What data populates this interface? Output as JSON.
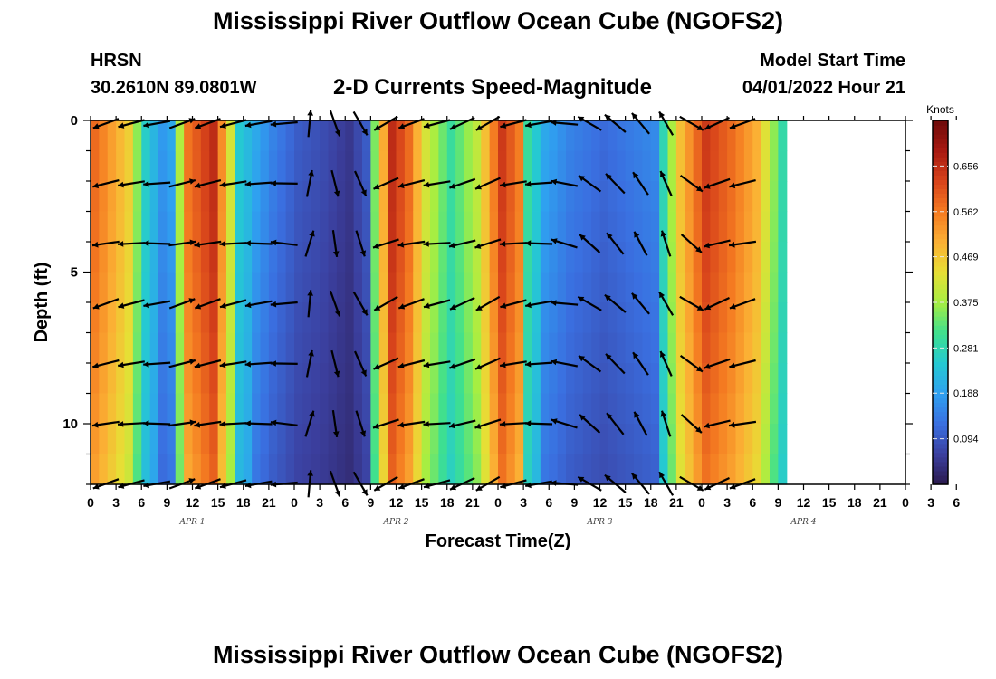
{
  "header": {
    "title": "Mississippi River Outflow Ocean Cube (NGOFS2)",
    "station": "HRSN",
    "coords": "30.2610N  89.0801W",
    "subtitle": "2-D Currents Speed-Magnitude",
    "start_label": "Model Start Time",
    "start_value": "04/01/2022 Hour 21"
  },
  "footer": {
    "title": "Mississippi River Outflow Ocean Cube (NGOFS2)"
  },
  "chart_data": {
    "type": "heatmap",
    "xlabel": "Forecast Time(Z)",
    "ylabel": "Depth (ft)",
    "ylim": [
      0,
      12
    ],
    "y_ticks": [
      0,
      5,
      10
    ],
    "x_tick_labels": [
      "0",
      "3",
      "6",
      "9",
      "12",
      "15",
      "18",
      "21",
      "0",
      "3",
      "6",
      "9",
      "12",
      "15",
      "18",
      "21",
      "0",
      "3",
      "6",
      "9",
      "12",
      "15",
      "18",
      "21",
      "0",
      "3",
      "6",
      "9",
      "12",
      "15",
      "18",
      "21",
      "0",
      "3",
      "6"
    ],
    "date_labels": [
      {
        "label": "APR 1",
        "hour": 12
      },
      {
        "label": "APR 2",
        "hour": 36
      },
      {
        "label": "APR 3",
        "hour": 60
      },
      {
        "label": "APR 4",
        "hour": 84
      }
    ],
    "x_hours_range": [
      0,
      96
    ],
    "colorbar": {
      "title": "Knots",
      "range": [
        0,
        0.75
      ],
      "ticks": [
        0.094,
        0.188,
        0.281,
        0.375,
        0.469,
        0.562,
        0.656
      ],
      "colors": [
        "#2b1a4d",
        "#3b3f9e",
        "#3a6fe0",
        "#2fa0f0",
        "#25c9d2",
        "#3ee08f",
        "#a6ee42",
        "#e7df35",
        "#fbb034",
        "#f47a21",
        "#d8441b",
        "#a81a12",
        "#6e0b0a"
      ]
    },
    "speed_profile_knots": [
      {
        "hour": 0,
        "speed": 0.58
      },
      {
        "hour": 4,
        "speed": 0.46
      },
      {
        "hour": 6,
        "speed": 0.26
      },
      {
        "hour": 8,
        "speed": 0.18
      },
      {
        "hour": 9,
        "speed": 0.2
      },
      {
        "hour": 11,
        "speed": 0.57
      },
      {
        "hour": 14,
        "speed": 0.66
      },
      {
        "hour": 16,
        "speed": 0.42
      },
      {
        "hour": 17,
        "speed": 0.25
      },
      {
        "hour": 19,
        "speed": 0.2
      },
      {
        "hour": 21,
        "speed": 0.15
      },
      {
        "hour": 24,
        "speed": 0.1
      },
      {
        "hour": 27,
        "speed": 0.08
      },
      {
        "hour": 30,
        "speed": 0.05
      },
      {
        "hour": 32,
        "speed": 0.1
      },
      {
        "hour": 33,
        "speed": 0.35
      },
      {
        "hour": 35,
        "speed": 0.66
      },
      {
        "hour": 37,
        "speed": 0.58
      },
      {
        "hour": 39,
        "speed": 0.42
      },
      {
        "hour": 42,
        "speed": 0.3
      },
      {
        "hour": 45,
        "speed": 0.4
      },
      {
        "hour": 48,
        "speed": 0.64
      },
      {
        "hour": 50,
        "speed": 0.56
      },
      {
        "hour": 51,
        "speed": 0.3
      },
      {
        "hour": 53,
        "speed": 0.2
      },
      {
        "hour": 56,
        "speed": 0.15
      },
      {
        "hour": 60,
        "speed": 0.12
      },
      {
        "hour": 63,
        "speed": 0.14
      },
      {
        "hour": 66,
        "speed": 0.16
      },
      {
        "hour": 67,
        "speed": 0.28
      },
      {
        "hour": 69,
        "speed": 0.48
      },
      {
        "hour": 72,
        "speed": 0.64
      },
      {
        "hour": 75,
        "speed": 0.58
      },
      {
        "hour": 78,
        "speed": 0.5
      },
      {
        "hour": 80,
        "speed": 0.36
      },
      {
        "hour": 81,
        "speed": 0.29
      }
    ]
  }
}
